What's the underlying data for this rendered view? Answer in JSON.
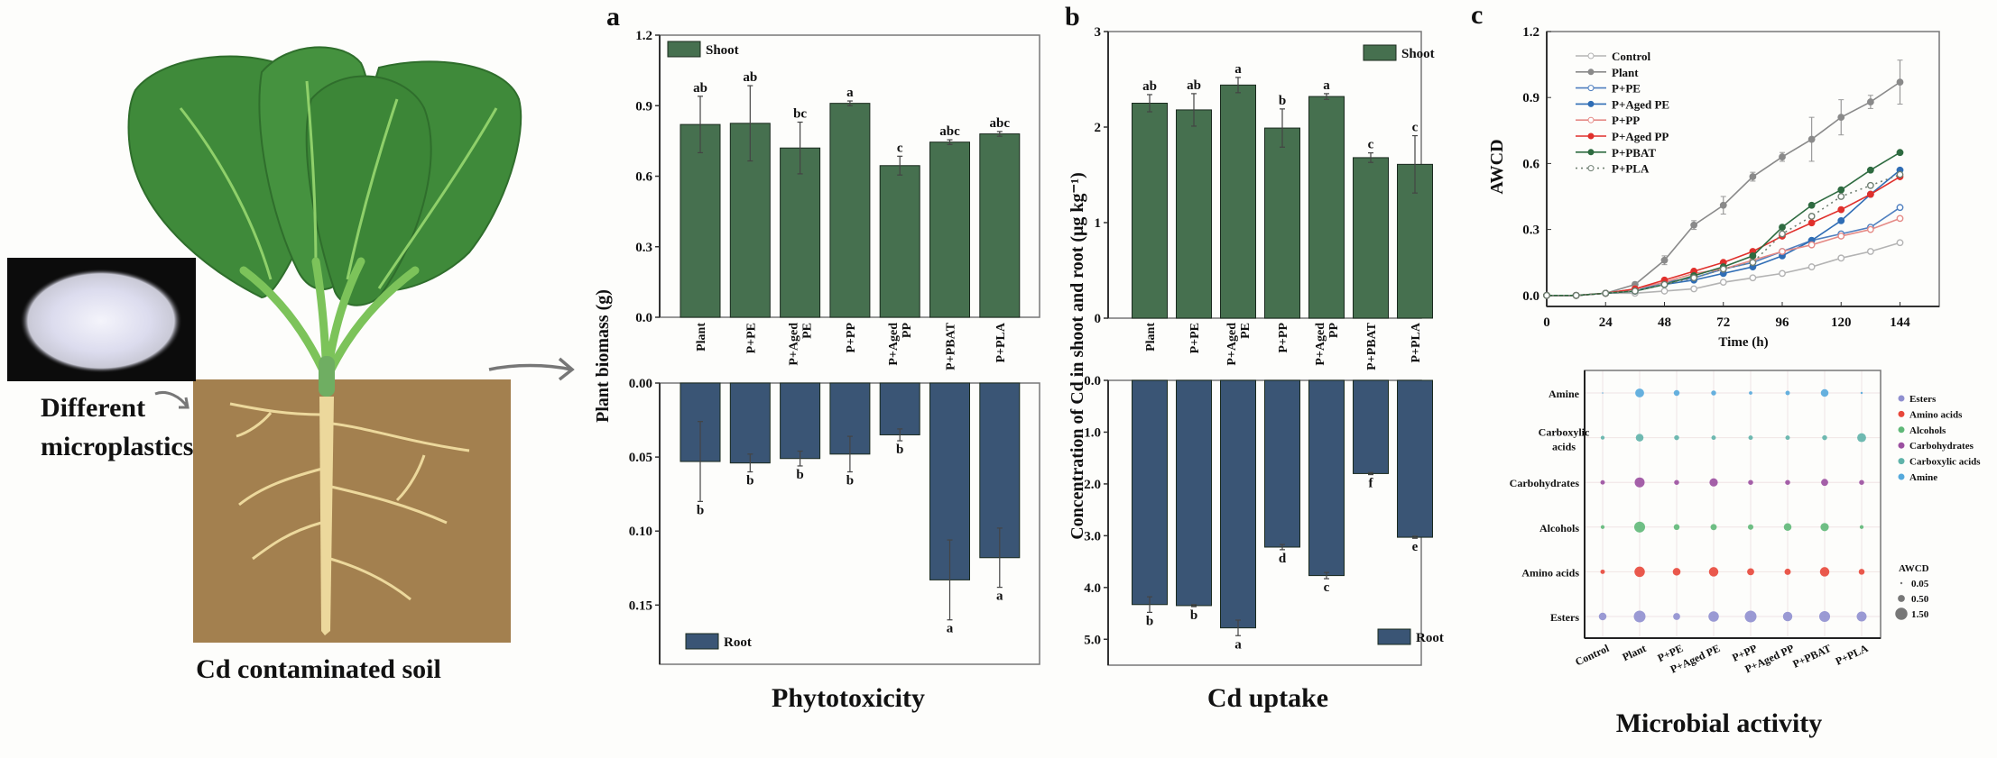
{
  "illustration": {
    "microplastics_label_line1": "Different",
    "microplastics_label_line2": "microplastics",
    "soil_label": "Cd contaminated soil"
  },
  "colors": {
    "shoot": "#46704f",
    "root": "#3a5575",
    "leaf": "#3f8a3a",
    "stem": "#7cc35a",
    "soil": "#a3804f",
    "root_drawing": "#ecd89c"
  },
  "chart_data": [
    {
      "panel": "a",
      "type": "bar",
      "caption": "Phytotoxicity",
      "ylabel": "Plant biomass (g)",
      "categories": [
        "Plant",
        "P+PE",
        "P+Aged PE",
        "P+PP",
        "P+Aged PP",
        "P+PBAT",
        "P+PLA"
      ],
      "series": [
        {
          "name": "Shoot",
          "direction": "up",
          "ylim": [
            0,
            1.2
          ],
          "ticks": [
            "0.0",
            "0.3",
            "0.6",
            "0.9",
            "1.2"
          ],
          "values": [
            0.82,
            0.825,
            0.72,
            0.91,
            0.645,
            0.745,
            0.78
          ],
          "errors": [
            0.12,
            0.16,
            0.11,
            0.01,
            0.04,
            0.01,
            0.01
          ],
          "letters": [
            "ab",
            "ab",
            "bc",
            "a",
            "c",
            "abc",
            "abc"
          ],
          "legend": "top-left"
        },
        {
          "name": "Root",
          "direction": "down",
          "ylim": [
            0,
            0.19
          ],
          "ticks": [
            "0.00",
            "0.05",
            "0.10",
            "0.15"
          ],
          "values": [
            0.053,
            0.054,
            0.051,
            0.048,
            0.035,
            0.133,
            0.118
          ],
          "errors": [
            0.027,
            0.006,
            0.005,
            0.012,
            0.004,
            0.027,
            0.02
          ],
          "letters": [
            "b",
            "b",
            "b",
            "b",
            "b",
            "a",
            "a"
          ],
          "legend": "bottom-left"
        }
      ]
    },
    {
      "panel": "b",
      "type": "bar",
      "caption": "Cd uptake",
      "ylabel": "Concentration of Cd in shoot and root (μg kg⁻¹)",
      "categories": [
        "Plant",
        "P+PE",
        "P+Aged PE",
        "P+PP",
        "P+Aged PP",
        "P+PBAT",
        "P+PLA"
      ],
      "series": [
        {
          "name": "Shoot",
          "direction": "up",
          "ylim": [
            0,
            3
          ],
          "ticks": [
            "0",
            "1",
            "2",
            "3"
          ],
          "values": [
            2.25,
            2.18,
            2.44,
            1.99,
            2.32,
            1.68,
            1.61
          ],
          "errors": [
            0.09,
            0.17,
            0.08,
            0.2,
            0.03,
            0.05,
            0.3
          ],
          "letters": [
            "ab",
            "ab",
            "a",
            "b",
            "a",
            "c",
            "c"
          ],
          "legend": "top-right"
        },
        {
          "name": "Root",
          "direction": "down",
          "ylim": [
            0,
            5.5
          ],
          "ticks": [
            "0.0",
            "1.0",
            "2.0",
            "3.0",
            "4.0",
            "5.0"
          ],
          "values": [
            4.33,
            4.35,
            4.78,
            3.22,
            3.77,
            1.8,
            3.03
          ],
          "errors": [
            0.15,
            0.02,
            0.15,
            0.05,
            0.06,
            0.02,
            0.02
          ],
          "letters": [
            "b",
            "b",
            "a",
            "d",
            "c",
            "f",
            "e"
          ],
          "legend": "bottom-right"
        }
      ]
    },
    {
      "panel": "c",
      "type": "line",
      "xlabel": "Time (h)",
      "ylabel": "AWCD",
      "xlim": [
        0,
        160
      ],
      "ylim": [
        -0.05,
        1.2
      ],
      "xticks": [
        0,
        24,
        48,
        72,
        96,
        120,
        144
      ],
      "yticks": [
        "0.0",
        "0.3",
        "0.6",
        "0.9",
        "1.2"
      ],
      "x": [
        0,
        12,
        24,
        36,
        48,
        60,
        72,
        84,
        96,
        108,
        120,
        132,
        144
      ],
      "legend": "top-left",
      "series": [
        {
          "name": "Control",
          "color": "#b3b3b3",
          "marker": "open",
          "style": "solid",
          "values": [
            0,
            0,
            0.01,
            0.01,
            0.02,
            0.03,
            0.06,
            0.08,
            0.1,
            0.13,
            0.17,
            0.2,
            0.24
          ]
        },
        {
          "name": "Plant",
          "color": "#8a8a8a",
          "marker": "filled",
          "style": "solid",
          "values": [
            0,
            0,
            0.01,
            0.05,
            0.16,
            0.32,
            0.41,
            0.54,
            0.63,
            0.71,
            0.81,
            0.88,
            0.97
          ],
          "errors": [
            0,
            0,
            0,
            0.01,
            0.02,
            0.02,
            0.04,
            0.02,
            0.02,
            0.1,
            0.08,
            0.03,
            0.1
          ]
        },
        {
          "name": "P+PE",
          "color": "#4f7fbf",
          "marker": "open",
          "style": "solid",
          "values": [
            0,
            0,
            0.01,
            0.02,
            0.06,
            0.08,
            0.12,
            0.15,
            0.2,
            0.25,
            0.28,
            0.31,
            0.4
          ]
        },
        {
          "name": "P+Aged PE",
          "color": "#2f6db5",
          "marker": "filled",
          "style": "solid",
          "values": [
            0,
            0,
            0.01,
            0.02,
            0.05,
            0.07,
            0.1,
            0.13,
            0.18,
            0.25,
            0.34,
            0.46,
            0.57
          ]
        },
        {
          "name": "P+PP",
          "color": "#e58a86",
          "marker": "open",
          "style": "solid",
          "values": [
            0,
            0,
            0.01,
            0.03,
            0.06,
            0.1,
            0.12,
            0.16,
            0.2,
            0.23,
            0.27,
            0.3,
            0.35
          ]
        },
        {
          "name": "P+Aged PP",
          "color": "#e0302c",
          "marker": "filled",
          "style": "solid",
          "values": [
            0,
            0,
            0.01,
            0.03,
            0.07,
            0.11,
            0.15,
            0.2,
            0.27,
            0.33,
            0.39,
            0.46,
            0.54
          ]
        },
        {
          "name": "P+PBAT",
          "color": "#2e6b40",
          "marker": "filled",
          "style": "solid",
          "values": [
            0,
            0,
            0.01,
            0.02,
            0.05,
            0.09,
            0.13,
            0.18,
            0.31,
            0.41,
            0.48,
            0.57,
            0.65
          ]
        },
        {
          "name": "P+PLA",
          "color": "#6f7f72",
          "marker": "open",
          "style": "dotted",
          "values": [
            0,
            0,
            0.01,
            0.02,
            0.05,
            0.08,
            0.12,
            0.15,
            0.28,
            0.36,
            0.45,
            0.5,
            0.55
          ]
        }
      ]
    },
    {
      "panel": "c",
      "type": "scatter",
      "subtype": "bubble",
      "caption": "Microbial activity",
      "categories": [
        "Control",
        "Plant",
        "P+PE",
        "P+Aged PE",
        "P+PP",
        "P+Aged PP",
        "P+PBAT",
        "P+PLA"
      ],
      "rows": [
        {
          "name": "Amine",
          "color": "#55a9dc",
          "values": [
            0.02,
            0.8,
            0.35,
            0.25,
            0.12,
            0.2,
            0.6,
            0.05
          ]
        },
        {
          "name": "Carboxylic acids",
          "color": "#5fb3aa",
          "values": [
            0.15,
            0.6,
            0.25,
            0.2,
            0.2,
            0.2,
            0.25,
            0.8
          ]
        },
        {
          "name": "Carbohydrates",
          "color": "#9b4fa0",
          "values": [
            0.2,
            1.0,
            0.25,
            0.7,
            0.25,
            0.25,
            0.5,
            0.25
          ]
        },
        {
          "name": "Alcohols",
          "color": "#5fb878",
          "values": [
            0.15,
            1.2,
            0.35,
            0.4,
            0.3,
            0.6,
            0.7,
            0.15
          ]
        },
        {
          "name": "Amino acids",
          "color": "#e8473a",
          "values": [
            0.2,
            1.1,
            0.6,
            0.9,
            0.5,
            0.4,
            0.9,
            0.35
          ]
        },
        {
          "name": "Esters",
          "color": "#8f8fcf",
          "values": [
            0.6,
            1.4,
            0.5,
            1.1,
            1.4,
            0.9,
            1.2,
            1.0
          ]
        }
      ],
      "row_labels": [
        "Amine",
        "Carboxylic\nacids",
        "Carbohydrates",
        "Alcohols",
        "Amino acids",
        "Esters"
      ],
      "legend_order": [
        "Esters",
        "Amino acids",
        "Alcohols",
        "Carbohydrates",
        "Carboxylic acids",
        "Amine"
      ],
      "legend": "right",
      "size_legend": {
        "title": "AWCD",
        "values": [
          "0.05",
          "0.50",
          "1.50"
        ]
      }
    }
  ]
}
